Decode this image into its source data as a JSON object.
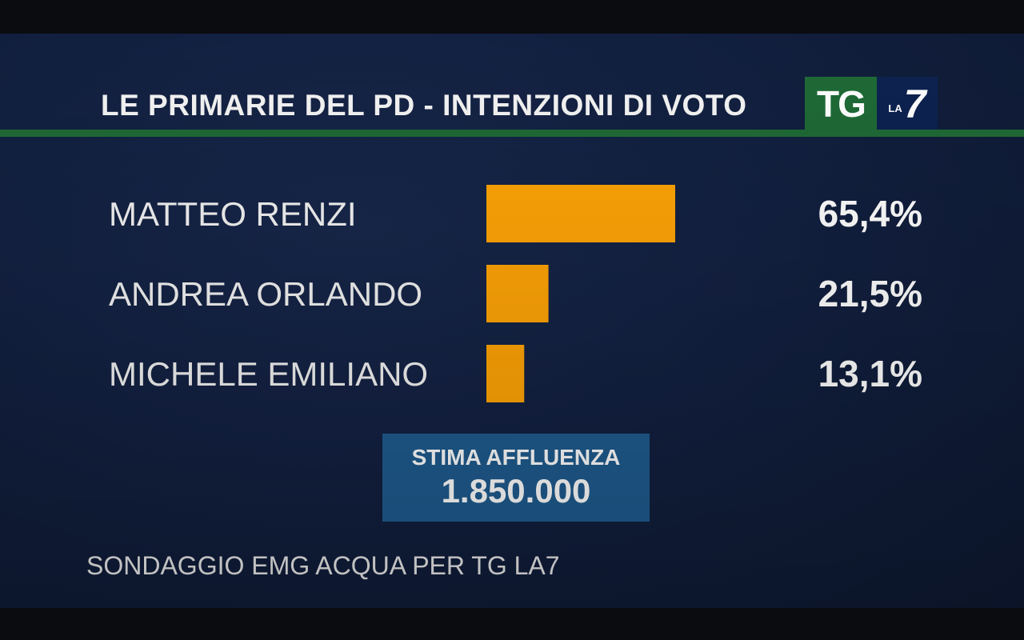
{
  "header": {
    "title": "LE PRIMARIE DEL PD - INTENZIONI DI VOTO",
    "logo_tg": "TG",
    "logo_la": "LA",
    "logo_7": "7"
  },
  "chart_data": {
    "type": "bar",
    "orientation": "horizontal",
    "categories": [
      "MATTEO RENZI",
      "ANDREA ORLANDO",
      "MICHELE EMILIANO"
    ],
    "values": [
      65.4,
      21.5,
      13.1
    ],
    "value_labels": [
      "65,4%",
      "21,5%",
      "13,1%"
    ],
    "bar_color": "#ffa406"
  },
  "turnout": {
    "label": "STIMA AFFLUENZA",
    "value": "1.850.000"
  },
  "footer": {
    "source": "SONDAGGIO EMG ACQUA PER TG LA7"
  },
  "colors": {
    "background": "#122040",
    "accent_green": "#1f6a36",
    "turnout_box": "#1f5b8e"
  }
}
